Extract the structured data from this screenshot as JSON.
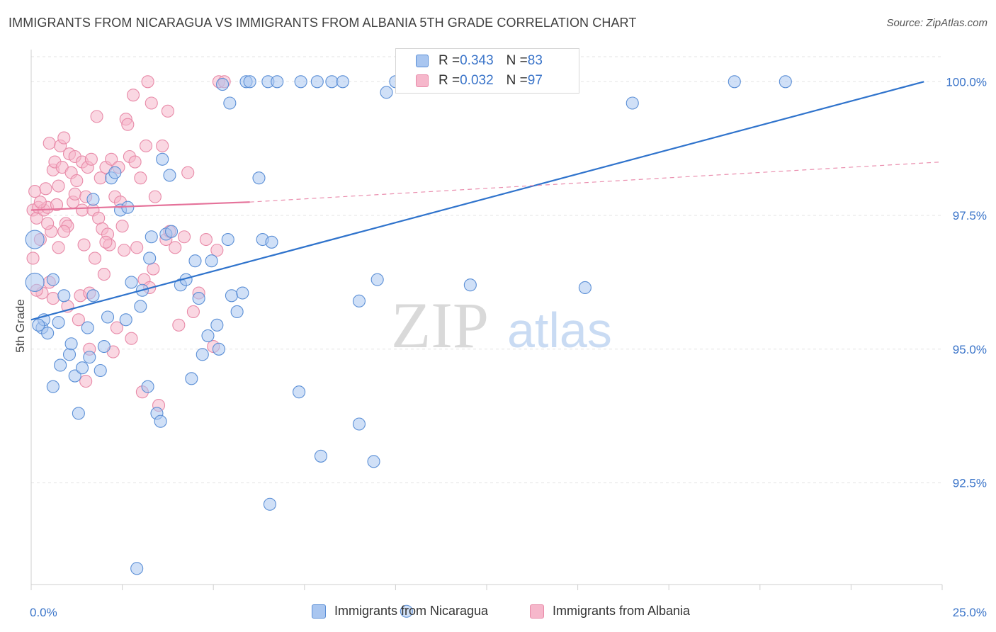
{
  "title": "IMMIGRANTS FROM NICARAGUA VS IMMIGRANTS FROM ALBANIA 5TH GRADE CORRELATION CHART",
  "source": "Source: ZipAtlas.com",
  "watermark": {
    "zip": "ZIP",
    "atlas": "atlas"
  },
  "colors": {
    "nicaragua_fill": "#a9c6f0",
    "nicaragua_stroke": "#5b8fd6",
    "nicaragua_line": "#2f73cc",
    "albania_fill": "#f6b7cb",
    "albania_stroke": "#e88aa8",
    "albania_line": "#e5729a",
    "tick_label": "#3a74c9",
    "grid": "#e3e3e3"
  },
  "legend": {
    "nicaragua": {
      "r_label": "R = ",
      "r_value": "0.343",
      "n_label": "N = ",
      "n_value": "83"
    },
    "albania": {
      "r_label": "R = ",
      "r_value": "0.032",
      "n_label": "N = ",
      "n_value": "97"
    }
  },
  "bottom_legend": [
    "Immigrants from Nicaragua",
    "Immigrants from Albania"
  ],
  "chart_data": {
    "type": "scatter",
    "title": "IMMIGRANTS FROM NICARAGUA VS IMMIGRANTS FROM ALBANIA 5TH GRADE CORRELATION CHART",
    "xlabel": "",
    "ylabel": "5th Grade",
    "xlim": [
      0,
      25
    ],
    "ylim": [
      90.6,
      100.6
    ],
    "x_tick_labels": [
      "0.0%",
      "25.0%"
    ],
    "y_ticks": [
      92.5,
      95.0,
      97.5,
      100.0
    ],
    "y_tick_labels": [
      "92.5%",
      "95.0%",
      "97.5%",
      "100.0%"
    ],
    "grid": true,
    "series": [
      {
        "name": "Immigrants from Nicaragua",
        "R": 0.343,
        "N": 83,
        "trend": {
          "x": [
            0,
            24.5
          ],
          "y": [
            95.55,
            100.0
          ],
          "dashed_extension": false
        },
        "points": [
          [
            0.1,
            97.05
          ],
          [
            0.1,
            96.25
          ],
          [
            0.3,
            95.4
          ],
          [
            0.35,
            95.55
          ],
          [
            0.45,
            95.3
          ],
          [
            0.6,
            96.3
          ],
          [
            0.6,
            94.3
          ],
          [
            0.75,
            95.5
          ],
          [
            0.8,
            94.7
          ],
          [
            0.9,
            96.0
          ],
          [
            1.05,
            94.9
          ],
          [
            1.1,
            95.1
          ],
          [
            1.2,
            94.5
          ],
          [
            1.3,
            93.8
          ],
          [
            1.4,
            94.65
          ],
          [
            1.55,
            95.4
          ],
          [
            1.6,
            94.85
          ],
          [
            1.7,
            96.0
          ],
          [
            1.7,
            97.8
          ],
          [
            1.9,
            94.6
          ],
          [
            2.0,
            95.05
          ],
          [
            2.1,
            95.6
          ],
          [
            2.2,
            98.2
          ],
          [
            2.3,
            98.3
          ],
          [
            2.45,
            97.6
          ],
          [
            2.6,
            95.55
          ],
          [
            2.65,
            97.65
          ],
          [
            2.75,
            96.25
          ],
          [
            2.9,
            90.9
          ],
          [
            3.0,
            95.8
          ],
          [
            3.05,
            96.1
          ],
          [
            3.2,
            94.3
          ],
          [
            3.25,
            96.7
          ],
          [
            3.3,
            97.1
          ],
          [
            3.45,
            93.8
          ],
          [
            3.55,
            93.65
          ],
          [
            3.6,
            98.55
          ],
          [
            3.7,
            97.15
          ],
          [
            3.8,
            98.25
          ],
          [
            3.85,
            97.2
          ],
          [
            4.1,
            96.2
          ],
          [
            4.25,
            96.3
          ],
          [
            4.4,
            94.45
          ],
          [
            4.5,
            96.65
          ],
          [
            4.6,
            95.95
          ],
          [
            4.7,
            94.9
          ],
          [
            4.85,
            95.25
          ],
          [
            4.95,
            96.65
          ],
          [
            5.1,
            95.45
          ],
          [
            5.15,
            95.0
          ],
          [
            5.25,
            99.95
          ],
          [
            5.4,
            97.05
          ],
          [
            5.5,
            96.0
          ],
          [
            5.45,
            99.6
          ],
          [
            5.65,
            95.7
          ],
          [
            5.8,
            96.05
          ],
          [
            5.9,
            100.0
          ],
          [
            6.0,
            100.0
          ],
          [
            6.25,
            98.2
          ],
          [
            6.35,
            97.05
          ],
          [
            6.5,
            100.0
          ],
          [
            6.55,
            92.1
          ],
          [
            6.6,
            97.0
          ],
          [
            6.75,
            100.0
          ],
          [
            7.35,
            94.2
          ],
          [
            7.4,
            100.0
          ],
          [
            7.85,
            100.0
          ],
          [
            7.95,
            93.0
          ],
          [
            8.25,
            100.0
          ],
          [
            8.55,
            100.0
          ],
          [
            9.0,
            95.9
          ],
          [
            9.0,
            93.6
          ],
          [
            9.4,
            92.9
          ],
          [
            9.5,
            96.3
          ],
          [
            9.75,
            99.8
          ],
          [
            10.0,
            100.0
          ],
          [
            10.3,
            90.1
          ],
          [
            12.05,
            96.2
          ],
          [
            15.2,
            96.15
          ],
          [
            16.5,
            99.6
          ],
          [
            19.3,
            100.0
          ],
          [
            20.7,
            100.0
          ],
          [
            0.2,
            95.45
          ]
        ]
      },
      {
        "name": "Immigrants from Albania",
        "R": 0.032,
        "N": 97,
        "trend": {
          "x": [
            0,
            6.0
          ],
          "y": [
            97.6,
            97.75
          ],
          "dashed_extension": {
            "x": [
              6.0,
              25
            ],
            "y": [
              97.75,
              98.5
            ]
          }
        },
        "points": [
          [
            0.05,
            97.6
          ],
          [
            0.05,
            96.7
          ],
          [
            0.1,
            97.95
          ],
          [
            0.15,
            97.45
          ],
          [
            0.2,
            97.65
          ],
          [
            0.25,
            97.05
          ],
          [
            0.3,
            96.05
          ],
          [
            0.35,
            97.6
          ],
          [
            0.4,
            98.0
          ],
          [
            0.45,
            97.65
          ],
          [
            0.5,
            98.85
          ],
          [
            0.55,
            97.2
          ],
          [
            0.6,
            98.35
          ],
          [
            0.65,
            98.5
          ],
          [
            0.7,
            97.7
          ],
          [
            0.75,
            98.05
          ],
          [
            0.75,
            96.9
          ],
          [
            0.8,
            98.8
          ],
          [
            0.85,
            98.4
          ],
          [
            0.9,
            98.95
          ],
          [
            0.95,
            97.35
          ],
          [
            1.0,
            95.8
          ],
          [
            1.0,
            97.3
          ],
          [
            1.05,
            98.65
          ],
          [
            1.1,
            98.3
          ],
          [
            1.15,
            97.75
          ],
          [
            1.2,
            98.6
          ],
          [
            1.2,
            97.9
          ],
          [
            1.25,
            98.15
          ],
          [
            1.3,
            95.55
          ],
          [
            1.35,
            96.0
          ],
          [
            1.4,
            98.5
          ],
          [
            1.4,
            97.6
          ],
          [
            1.5,
            94.4
          ],
          [
            1.5,
            97.85
          ],
          [
            1.55,
            98.4
          ],
          [
            1.6,
            96.05
          ],
          [
            1.65,
            98.55
          ],
          [
            1.7,
            97.6
          ],
          [
            1.8,
            99.35
          ],
          [
            1.85,
            97.45
          ],
          [
            1.9,
            98.2
          ],
          [
            1.95,
            97.25
          ],
          [
            2.0,
            96.4
          ],
          [
            2.05,
            98.4
          ],
          [
            2.1,
            97.15
          ],
          [
            2.15,
            96.95
          ],
          [
            2.2,
            98.55
          ],
          [
            2.3,
            97.85
          ],
          [
            2.35,
            95.4
          ],
          [
            2.4,
            98.4
          ],
          [
            2.45,
            97.75
          ],
          [
            2.5,
            97.3
          ],
          [
            2.55,
            96.85
          ],
          [
            2.6,
            99.3
          ],
          [
            2.65,
            99.2
          ],
          [
            2.7,
            98.6
          ],
          [
            2.75,
            95.2
          ],
          [
            2.8,
            99.75
          ],
          [
            2.85,
            98.5
          ],
          [
            2.9,
            96.9
          ],
          [
            3.0,
            98.2
          ],
          [
            3.05,
            94.2
          ],
          [
            3.1,
            96.3
          ],
          [
            3.15,
            98.8
          ],
          [
            3.2,
            100.0
          ],
          [
            3.25,
            96.15
          ],
          [
            3.3,
            99.6
          ],
          [
            3.35,
            96.5
          ],
          [
            3.4,
            97.85
          ],
          [
            3.5,
            93.95
          ],
          [
            3.6,
            98.8
          ],
          [
            3.7,
            97.05
          ],
          [
            3.75,
            99.45
          ],
          [
            3.8,
            97.2
          ],
          [
            3.95,
            96.9
          ],
          [
            4.05,
            95.45
          ],
          [
            4.2,
            97.1
          ],
          [
            4.3,
            98.3
          ],
          [
            4.45,
            95.7
          ],
          [
            4.6,
            96.05
          ],
          [
            4.8,
            97.05
          ],
          [
            5.0,
            95.05
          ],
          [
            5.1,
            96.85
          ],
          [
            5.15,
            100.0
          ],
          [
            5.3,
            100.0
          ],
          [
            0.5,
            96.25
          ],
          [
            0.6,
            95.95
          ],
          [
            0.25,
            97.75
          ],
          [
            0.15,
            96.1
          ],
          [
            1.6,
            95.0
          ],
          [
            2.25,
            94.95
          ],
          [
            2.05,
            97.0
          ],
          [
            0.9,
            97.2
          ],
          [
            1.45,
            96.95
          ],
          [
            0.45,
            97.35
          ],
          [
            1.75,
            96.7
          ]
        ]
      }
    ]
  }
}
